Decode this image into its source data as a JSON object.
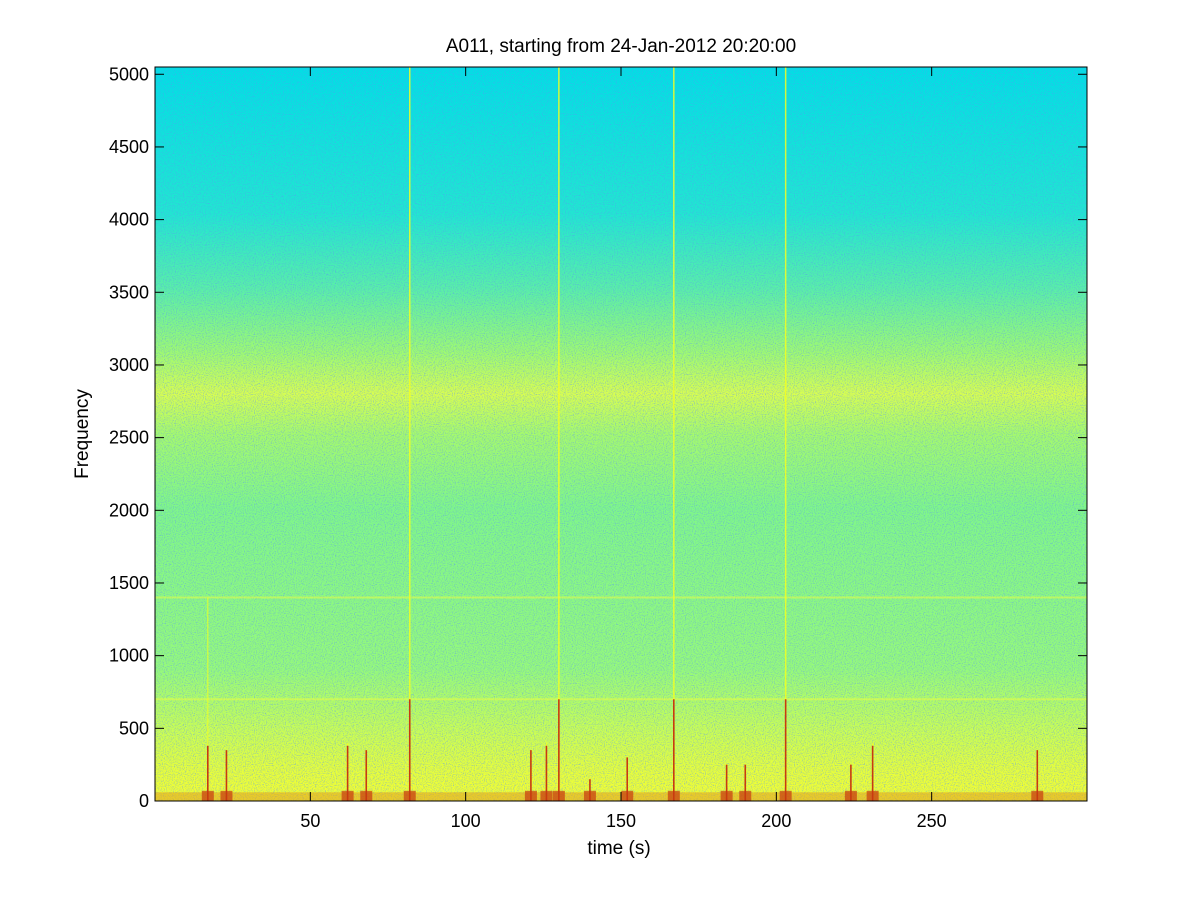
{
  "chart_data": {
    "type": "heatmap",
    "title": "A011, starting from 24-Jan-2012 20:20:00",
    "xlabel": "time (s)",
    "ylabel": "Frequency",
    "xlim": [
      0,
      300
    ],
    "ylim": [
      0,
      5050
    ],
    "x_ticks": [
      50,
      100,
      150,
      200,
      250
    ],
    "y_ticks": [
      0,
      500,
      1000,
      1500,
      2000,
      2500,
      3000,
      3500,
      4000,
      4500,
      5000
    ],
    "grid": false,
    "colormap": "jet",
    "colors": {
      "high_freq_background": "#00e4e0",
      "mid_band": "#7ef88a",
      "band_2800hz": "#d8ff50",
      "low_freq": "#e8ff3a",
      "transient_peaks": "#c83a10"
    },
    "energy_bands_hz": [
      {
        "center": 2800,
        "description": "elevated broadband energy"
      },
      {
        "center": 700,
        "description": "weak tonal line"
      },
      {
        "center": 1400,
        "description": "weak tonal line"
      }
    ],
    "transients": [
      {
        "time": 17,
        "max_freq": 1400
      },
      {
        "time": 23,
        "max_freq": 350
      },
      {
        "time": 62,
        "max_freq": 400
      },
      {
        "time": 68,
        "max_freq": 350
      },
      {
        "time": 82,
        "max_freq": 5050
      },
      {
        "time": 121,
        "max_freq": 350
      },
      {
        "time": 126,
        "max_freq": 400
      },
      {
        "time": 130,
        "max_freq": 5050
      },
      {
        "time": 140,
        "max_freq": 150
      },
      {
        "time": 152,
        "max_freq": 300
      },
      {
        "time": 167,
        "max_freq": 5050
      },
      {
        "time": 184,
        "max_freq": 250
      },
      {
        "time": 190,
        "max_freq": 250
      },
      {
        "time": 203,
        "max_freq": 5050
      },
      {
        "time": 224,
        "max_freq": 250
      },
      {
        "time": 231,
        "max_freq": 400
      },
      {
        "time": 284,
        "max_freq": 350
      }
    ]
  }
}
